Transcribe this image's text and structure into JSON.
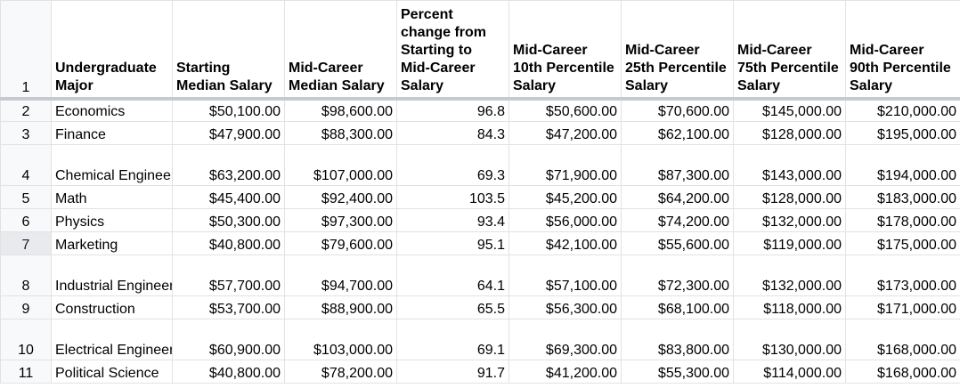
{
  "sheet": {
    "row_numbers": [
      "1",
      "2",
      "3",
      "4",
      "5",
      "6",
      "7",
      "8",
      "9",
      "10",
      "11"
    ],
    "headers": [
      "Undergraduate Major",
      "Starting Median Salary",
      "Mid-Career Median Salary",
      "Percent change from Starting to Mid-Career Salary",
      "Mid-Career 10th Percentile Salary",
      "Mid-Career 25th Percentile Salary",
      "Mid-Career 75th Percentile Salary",
      "Mid-Career 90th Percentile Salary"
    ],
    "rows": [
      [
        "Economics",
        "$50,100.00",
        "$98,600.00",
        "96.8",
        "$50,600.00",
        "$70,600.00",
        "$145,000.00",
        "$210,000.00"
      ],
      [
        "Finance",
        "$47,900.00",
        "$88,300.00",
        "84.3",
        "$47,200.00",
        "$62,100.00",
        "$128,000.00",
        "$195,000.00"
      ],
      [
        "Chemical Engineering",
        "$63,200.00",
        "$107,000.00",
        "69.3",
        "$71,900.00",
        "$87,300.00",
        "$143,000.00",
        "$194,000.00"
      ],
      [
        "Math",
        "$45,400.00",
        "$92,400.00",
        "103.5",
        "$45,200.00",
        "$64,200.00",
        "$128,000.00",
        "$183,000.00"
      ],
      [
        "Physics",
        "$50,300.00",
        "$97,300.00",
        "93.4",
        "$56,000.00",
        "$74,200.00",
        "$132,000.00",
        "$178,000.00"
      ],
      [
        "Marketing",
        "$40,800.00",
        "$79,600.00",
        "95.1",
        "$42,100.00",
        "$55,600.00",
        "$119,000.00",
        "$175,000.00"
      ],
      [
        "Industrial Engineering",
        "$57,700.00",
        "$94,700.00",
        "64.1",
        "$57,100.00",
        "$72,300.00",
        "$132,000.00",
        "$173,000.00"
      ],
      [
        "Construction",
        "$53,700.00",
        "$88,900.00",
        "65.5",
        "$56,300.00",
        "$68,100.00",
        "$118,000.00",
        "$171,000.00"
      ],
      [
        "Electrical Engineering",
        "$60,900.00",
        "$103,000.00",
        "69.1",
        "$69,300.00",
        "$83,800.00",
        "$130,000.00",
        "$168,000.00"
      ],
      [
        "Political Science",
        "$40,800.00",
        "$78,200.00",
        "91.7",
        "$41,200.00",
        "$55,300.00",
        "$114,000.00",
        "$168,000.00"
      ]
    ],
    "active_row": "7"
  }
}
